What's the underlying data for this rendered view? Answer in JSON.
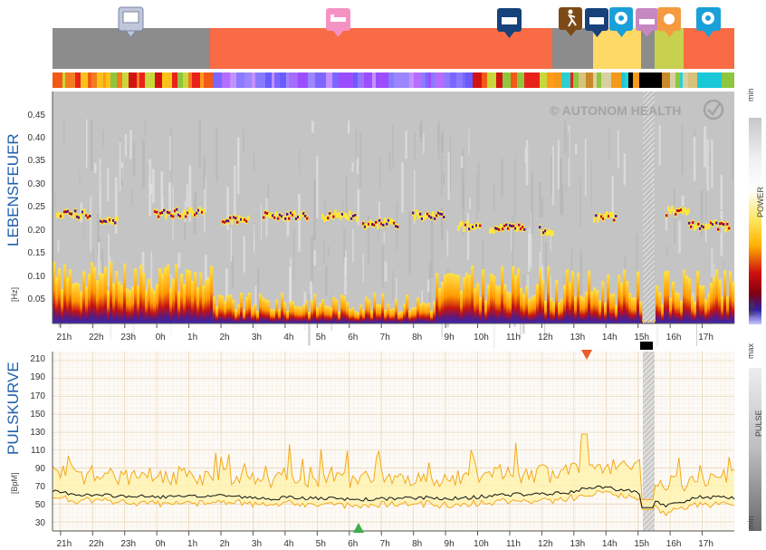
{
  "watermark": "© AUTONOM HEALTH",
  "spectrogram": {
    "title": "LEBENSFEUER",
    "unit": "[Hz]",
    "y_ticks": [
      "0.45",
      "0.40",
      "0.35",
      "0.30",
      "0.25",
      "0.20",
      "0.15",
      "0.10",
      "0.05"
    ],
    "legend": {
      "top": "min",
      "middle": "POWER",
      "bottom": "max"
    }
  },
  "pulse": {
    "title": "PULSKURVE",
    "unit": "[BpM]",
    "y_ticks": [
      "210",
      "190",
      "170",
      "150",
      "130",
      "110",
      "90",
      "70",
      "50",
      "30"
    ],
    "legend": {
      "top": "max",
      "middle": "PULSE",
      "bottom": "min"
    }
  },
  "time_ticks": [
    "21h",
    "22h",
    "23h",
    "0h",
    "1h",
    "2h",
    "3h",
    "4h",
    "5h",
    "6h",
    "7h",
    "8h",
    "9h",
    "10h",
    "11h",
    "12h",
    "13h",
    "14h",
    "15h",
    "16h",
    "17h"
  ],
  "activity_icons": [
    "monitor-icon",
    "bed-icon",
    "keyboard-icon",
    "hiking-icon",
    "keyboard-icon",
    "brain-icon",
    "bath-icon",
    "meal-icon",
    "brain-icon"
  ],
  "activity_colors": {
    "grey": "#8c8c8c",
    "orange": "#f96b44",
    "yellow": "#ffd966",
    "lime": "#c8d050"
  },
  "chart_data": [
    {
      "type": "heatmap",
      "title": "LEBENSFEUER",
      "ylabel": "[Hz]",
      "ylim": [
        0,
        0.5
      ],
      "x": [
        "21h",
        "22h",
        "23h",
        "0h",
        "1h",
        "2h",
        "3h",
        "4h",
        "5h",
        "6h",
        "7h",
        "8h",
        "9h",
        "10h",
        "11h",
        "12h",
        "13h",
        "14h",
        "15h",
        "16h",
        "17h"
      ],
      "colorbar": [
        "min",
        "POWER",
        "max"
      ]
    },
    {
      "type": "line",
      "title": "PULSKURVE",
      "ylabel": "[BpM]",
      "ylim": [
        20,
        220
      ],
      "x": [
        "21h",
        "22h",
        "23h",
        "0h",
        "1h",
        "2h",
        "3h",
        "4h",
        "5h",
        "6h",
        "7h",
        "8h",
        "9h",
        "10h",
        "11h",
        "12h",
        "13h",
        "14h",
        "15h",
        "16h",
        "17h"
      ],
      "series": [
        {
          "values": [
            64,
            60,
            59,
            58,
            58,
            60,
            56,
            57,
            56,
            55,
            56,
            57,
            56,
            60,
            61,
            62,
            70,
            64,
            48,
            58,
            57
          ]
        }
      ],
      "markers": {
        "max": "13.5h",
        "min": "6.5h"
      }
    }
  ]
}
